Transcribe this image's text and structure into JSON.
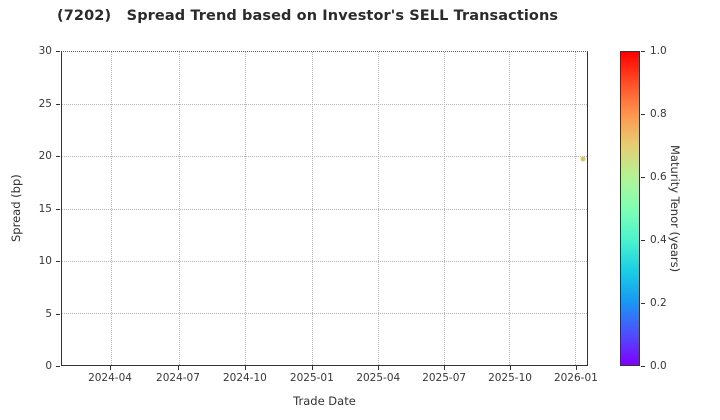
{
  "title": "(7202)   Spread Trend based on Investor's SELL Transactions",
  "chart_data": {
    "type": "scatter",
    "title": "(7202)   Spread Trend based on Investor's SELL Transactions",
    "xlabel": "Trade Date",
    "ylabel": "Spread (bp)",
    "ylim": [
      0,
      30
    ],
    "yticks": [
      0,
      5,
      10,
      15,
      20,
      25,
      30
    ],
    "xtick_labels": [
      "2024-04",
      "2024-07",
      "2024-10",
      "2025-01",
      "2025-04",
      "2025-07",
      "2025-10",
      "2026-01"
    ],
    "grid": true,
    "grid_style": "dotted",
    "legend_position": "none",
    "points": [
      {
        "trade_date": "2026-01",
        "spread_bp": 19.7,
        "maturity_tenor_years": 0.63,
        "color": "#d8c55e"
      }
    ],
    "colorbar": {
      "label": "Maturity Tenor (years)",
      "tick_labels": [
        "0.0",
        "0.2",
        "0.4",
        "0.6",
        "0.8",
        "1.0"
      ],
      "range": [
        0.0,
        1.0
      ],
      "colormap": "rainbow",
      "gradient_stops_bottom_to_top": [
        "#8000ff",
        "#4d4ffc",
        "#1a96f3",
        "#1acee3",
        "#4df3ce",
        "#80ffb4",
        "#b3f396",
        "#e6ce74",
        "#ff964f",
        "#ff4f28",
        "#ff0000"
      ]
    }
  },
  "colors": {
    "background": "#ffffff",
    "spine": "#333333",
    "gridline": "#b4b4b4",
    "title_text": "#2b2b2b",
    "tick_text": "#383838",
    "marker": "#d8c55e"
  }
}
